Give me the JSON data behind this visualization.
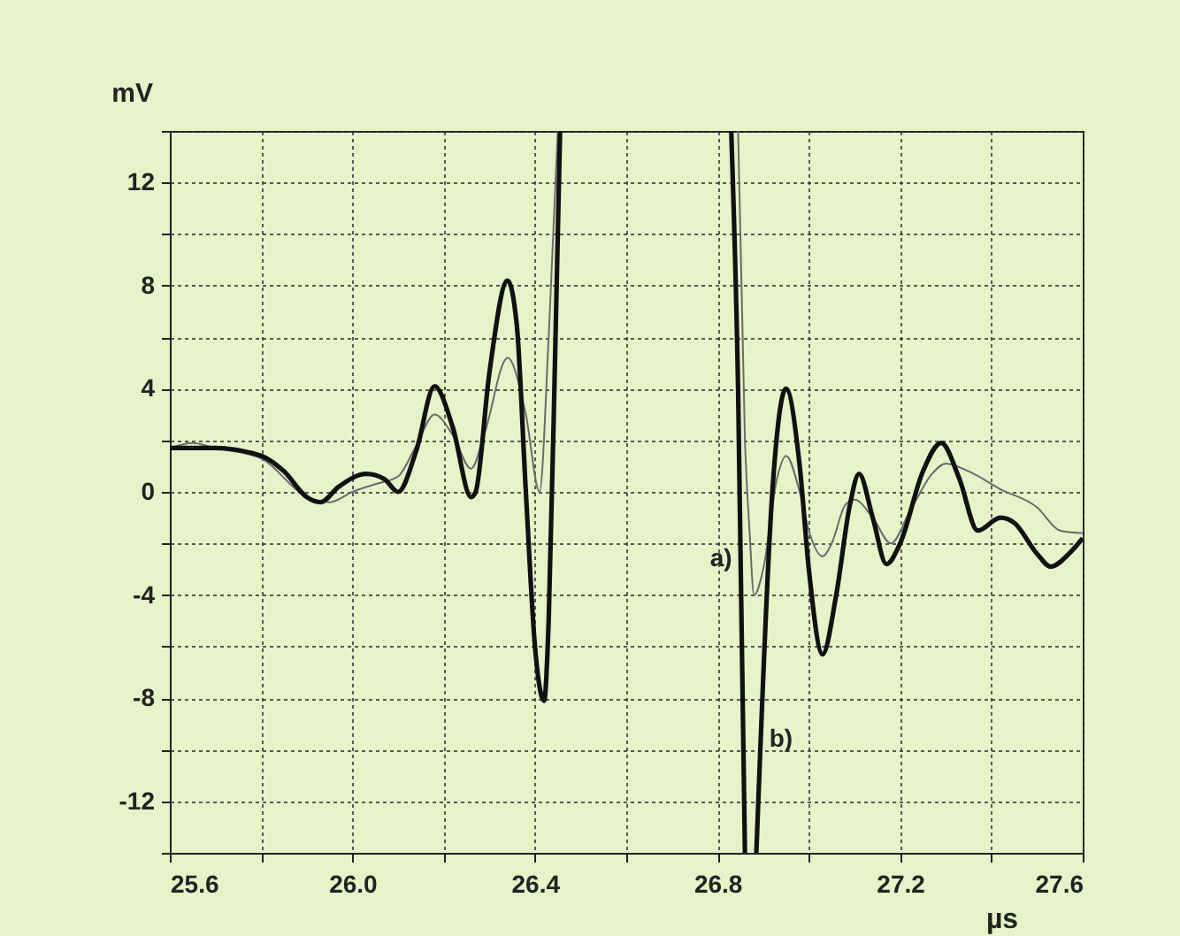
{
  "chart_data": {
    "type": "line",
    "xlabel": "µs",
    "ylabel": "mV",
    "xlim": [
      25.6,
      27.6
    ],
    "ylim": [
      -14,
      14
    ],
    "xticks": [
      {
        "value": 25.6,
        "label": "25.6"
      },
      {
        "value": 25.8,
        "label": null
      },
      {
        "value": 26.0,
        "label": "26.0"
      },
      {
        "value": 26.2,
        "label": null
      },
      {
        "value": 26.4,
        "label": "26.4"
      },
      {
        "value": 26.6,
        "label": null
      },
      {
        "value": 26.8,
        "label": "26.8"
      },
      {
        "value": 27.0,
        "label": null
      },
      {
        "value": 27.2,
        "label": "27.2"
      },
      {
        "value": 27.4,
        "label": null
      },
      {
        "value": 27.6,
        "label": "27.6"
      }
    ],
    "yticks": [
      {
        "value": -14,
        "label": null
      },
      -12,
      {
        "value": -10,
        "label": null
      },
      -8,
      {
        "value": -6,
        "label": null
      },
      -4,
      {
        "value": -2,
        "label": null
      },
      0,
      {
        "value": 2,
        "label": null
      },
      4,
      {
        "value": 6,
        "label": null
      },
      8,
      {
        "value": 10,
        "label": null
      },
      12,
      {
        "value": 14,
        "label": null
      }
    ],
    "grid": true,
    "marker": "none",
    "line_style": "solid",
    "series": [
      {
        "color": "#6a6a6a",
        "x": [
          25.6,
          25.65,
          25.7,
          25.8,
          25.9,
          25.95,
          26.0,
          26.05,
          26.1,
          26.14,
          26.18,
          26.22,
          26.26,
          26.29,
          26.34,
          26.38,
          26.41,
          26.43,
          26.45,
          26.6,
          26.845,
          26.86,
          26.87,
          26.88,
          26.9,
          26.93,
          26.95,
          26.98,
          27.0,
          27.03,
          27.05,
          27.08,
          27.1,
          27.14,
          27.18,
          27.22,
          27.27,
          27.3,
          27.35,
          27.42,
          27.5,
          27.55,
          27.6
        ],
        "values": [
          1.7,
          1.9,
          1.7,
          1.3,
          -0.2,
          -0.4,
          0.0,
          0.3,
          0.6,
          1.8,
          3.0,
          2.2,
          0.9,
          2.3,
          5.2,
          3.0,
          0.0,
          6,
          14,
          null,
          14,
          2,
          -1.5,
          -4.0,
          -3,
          0.5,
          1.4,
          0.0,
          -1.5,
          -2.5,
          -2.0,
          -0.5,
          -0.3,
          -1,
          -2.0,
          -0.8,
          0.7,
          1.1,
          0.8,
          0.1,
          -0.6,
          -1.5,
          -1.6
        ]
      },
      {
        "color": "#111111",
        "x": [
          25.6,
          25.7,
          25.8,
          25.85,
          25.9,
          25.93,
          25.97,
          26.03,
          26.07,
          26.1,
          26.14,
          26.18,
          26.22,
          26.26,
          26.27,
          26.3,
          26.34,
          26.36,
          26.38,
          26.4,
          26.42,
          26.43,
          26.445,
          26.455,
          26.6,
          26.83,
          26.845,
          26.86,
          26.87,
          26.885,
          26.92,
          26.95,
          26.98,
          27.0,
          27.03,
          27.06,
          27.09,
          27.11,
          27.14,
          27.17,
          27.2,
          27.25,
          27.29,
          27.33,
          27.37,
          27.42,
          27.45,
          27.5,
          27.53,
          27.57,
          27.6
        ],
        "values": [
          1.7,
          1.7,
          1.4,
          0.8,
          -0.2,
          -0.4,
          0.2,
          0.7,
          0.5,
          0.0,
          1.6,
          4.1,
          2.5,
          -0.2,
          0.0,
          4.6,
          8.2,
          6.5,
          0,
          -6,
          -8.1,
          -5,
          6,
          14,
          null,
          14,
          4,
          -14,
          null,
          -14,
          0,
          4.0,
          1,
          -3,
          -6.3,
          -4,
          -0.5,
          0.7,
          -1,
          -2.8,
          -2,
          0.8,
          1.9,
          0.5,
          -1.5,
          -1.0,
          -1.2,
          -2.4,
          -2.9,
          -2.4,
          -1.8
        ]
      }
    ],
    "annotations": [
      {
        "text": "a)",
        "x": 26.855,
        "y": -2.6
      },
      {
        "text": "b)",
        "x": 26.89,
        "y": -9.6
      }
    ]
  }
}
